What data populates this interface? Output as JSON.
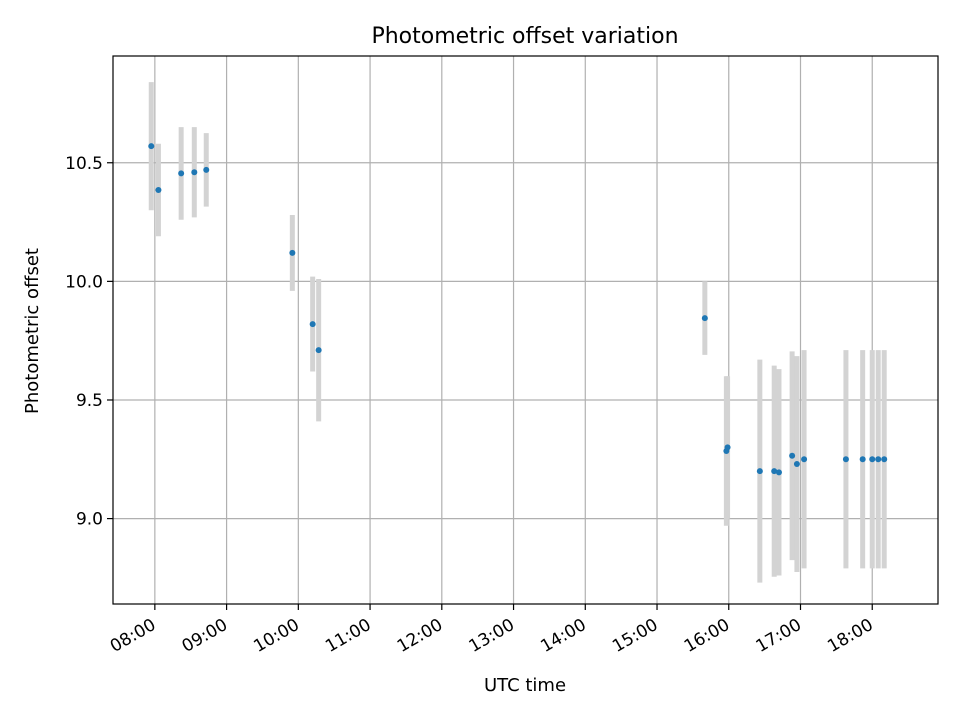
{
  "chart_data": {
    "type": "scatter",
    "title": "Photometric offset variation",
    "xlabel": "UTC time",
    "ylabel": "Photometric offset",
    "x_tick_labels": [
      "08:00",
      "09:00",
      "10:00",
      "11:00",
      "12:00",
      "13:00",
      "14:00",
      "15:00",
      "16:00",
      "17:00",
      "18:00"
    ],
    "x_tick_hours": [
      8,
      9,
      10,
      11,
      12,
      13,
      14,
      15,
      16,
      17,
      18
    ],
    "xlim": [
      "07:25",
      "18:55"
    ],
    "y_ticks": [
      9.0,
      9.5,
      10.0,
      10.5
    ],
    "y_tick_labels": [
      "9.0",
      "9.5",
      "10.0",
      "10.5"
    ],
    "ylim": [
      8.64,
      10.95
    ],
    "grid": true,
    "point_color": "#1f77b4",
    "errorbar_color": "#d3d3d3",
    "points": [
      {
        "time": "07:57",
        "y": 10.57,
        "err": 0.27
      },
      {
        "time": "08:03",
        "y": 10.385,
        "err": 0.195
      },
      {
        "time": "08:22",
        "y": 10.455,
        "err": 0.195
      },
      {
        "time": "08:33",
        "y": 10.46,
        "err": 0.19
      },
      {
        "time": "08:43",
        "y": 10.47,
        "err": 0.155
      },
      {
        "time": "09:55",
        "y": 10.12,
        "err": 0.16
      },
      {
        "time": "10:12",
        "y": 9.82,
        "err": 0.2
      },
      {
        "time": "10:17",
        "y": 9.71,
        "err": 0.3
      },
      {
        "time": "15:40",
        "y": 9.845,
        "err": 0.155
      },
      {
        "time": "15:58",
        "y": 9.285,
        "err": 0.315
      },
      {
        "time": "15:59",
        "y": 9.3,
        "err": 0.3
      },
      {
        "time": "16:26",
        "y": 9.2,
        "err": 0.47
      },
      {
        "time": "16:38",
        "y": 9.2,
        "err": 0.445
      },
      {
        "time": "16:42",
        "y": 9.195,
        "err": 0.435
      },
      {
        "time": "16:53",
        "y": 9.265,
        "err": 0.44
      },
      {
        "time": "16:57",
        "y": 9.23,
        "err": 0.455
      },
      {
        "time": "17:03",
        "y": 9.25,
        "err": 0.46
      },
      {
        "time": "17:38",
        "y": 9.25,
        "err": 0.46
      },
      {
        "time": "17:52",
        "y": 9.25,
        "err": 0.46
      },
      {
        "time": "18:00",
        "y": 9.25,
        "err": 0.46
      },
      {
        "time": "18:05",
        "y": 9.25,
        "err": 0.46
      },
      {
        "time": "18:10",
        "y": 9.25,
        "err": 0.46
      }
    ]
  }
}
